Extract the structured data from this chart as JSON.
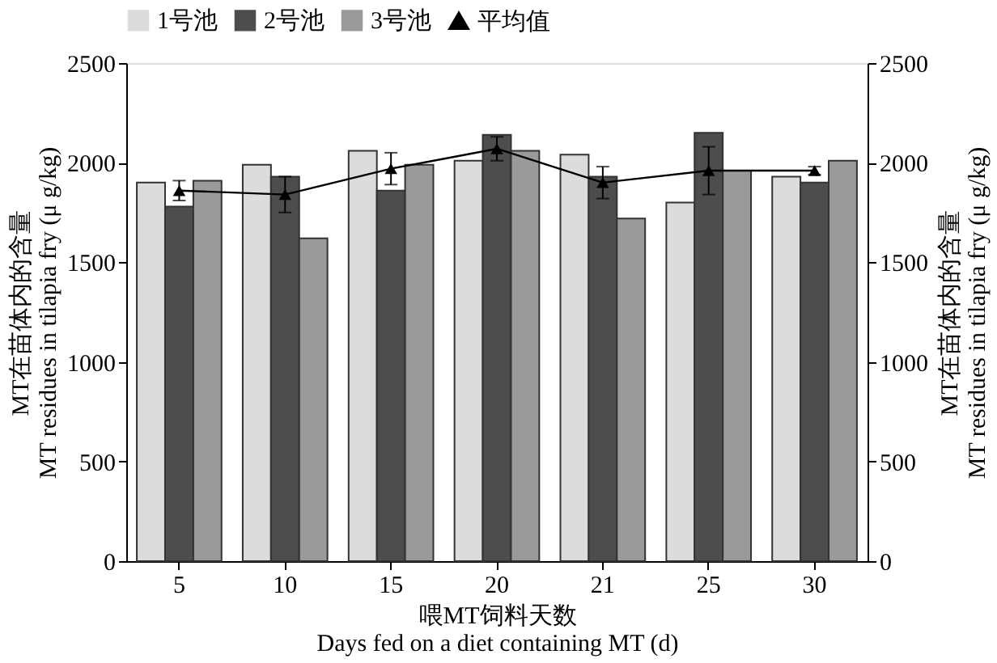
{
  "chart_data": {
    "type": "bar",
    "ylabel": "MT在苗体内的含量\nMT residues in tilapia fry (μ g/kg)",
    "y2label": "MT在苗体内的含量\nMT residues in tilapia fry (μ g/kg)",
    "xlabel": "喂MT饲料天数\nDays fed on a diet containing MT (d)",
    "categories": [
      "5",
      "10",
      "15",
      "20",
      "21",
      "25",
      "30"
    ],
    "series": [
      {
        "name": "1号池",
        "color": "#dcdcdc",
        "values": [
          1900,
          1990,
          2060,
          2010,
          2040,
          1800,
          1930
        ]
      },
      {
        "name": "2号池",
        "color": "#4d4d4d",
        "values": [
          1780,
          1930,
          1860,
          2140,
          1930,
          2150,
          1900
        ]
      },
      {
        "name": "3号池",
        "color": "#9a9a9a",
        "values": [
          1910,
          1620,
          1990,
          2060,
          1720,
          1960,
          2010
        ]
      },
      {
        "name": "平均值",
        "type": "line",
        "color": "#000000",
        "marker": "triangle",
        "line_style": "solid",
        "values": [
          1860,
          1840,
          1970,
          2070,
          1900,
          1960,
          1960
        ],
        "errors": [
          50,
          90,
          80,
          60,
          80,
          120,
          20
        ]
      }
    ],
    "ylim": [
      0,
      2500
    ],
    "yticks": [
      0,
      500,
      1000,
      1500,
      2000,
      2500
    ],
    "y2lim": [
      0,
      2500
    ],
    "y2ticks": [
      0,
      500,
      1000,
      1500,
      2000,
      2500
    ],
    "legend": "top",
    "grid": false
  }
}
